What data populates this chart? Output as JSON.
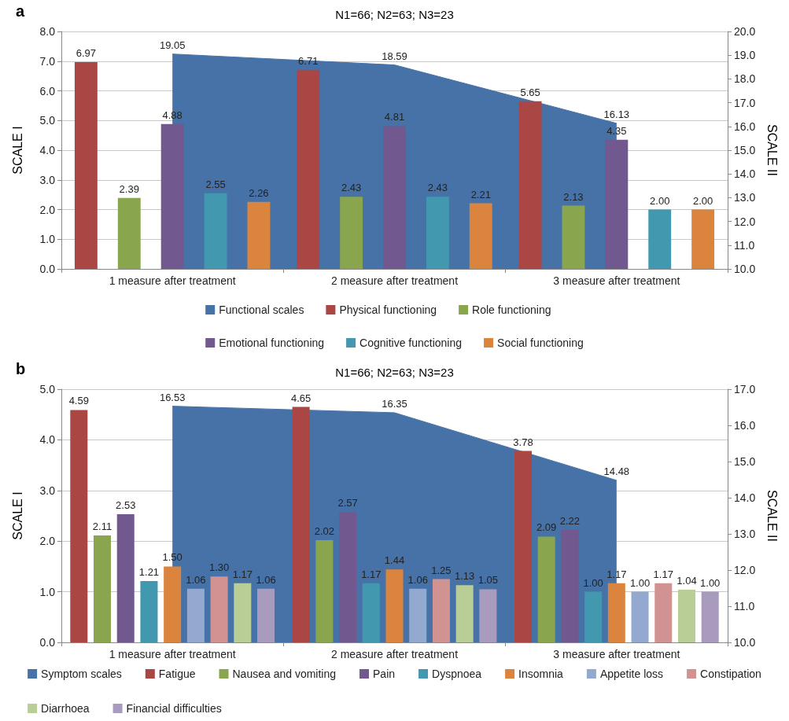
{
  "chart_data": [
    {
      "type": "bar",
      "title": "N1=66; N2=63; N3=23",
      "annotations": [
        "a"
      ],
      "ylabel": "SCALE I",
      "y2label": "SCALE II",
      "categories": [
        "1 measure after treatment",
        "2 measure after treatment",
        "3 measure after treatment"
      ],
      "series": [
        {
          "name": "Functional scales",
          "type": "area",
          "axis": "y2",
          "color": "#4672a8",
          "values": [
            19.05,
            18.59,
            16.13
          ],
          "value_labels": [
            "19.05",
            "18.59",
            "16.13"
          ]
        },
        {
          "name": "Physical functioning",
          "color": "#aa4643",
          "values": [
            6.97,
            6.71,
            5.65
          ],
          "value_labels": [
            "6.97",
            "6.71",
            "5.65"
          ]
        },
        {
          "name": "Role functioning",
          "color": "#89a54e",
          "values": [
            2.39,
            2.43,
            2.13
          ],
          "value_labels": [
            "2.39",
            "2.43",
            "2.13"
          ]
        },
        {
          "name": "Emotional functioning",
          "color": "#71588f",
          "values": [
            4.88,
            4.81,
            4.35
          ],
          "value_labels": [
            "4.88",
            "4.81",
            "4.35"
          ]
        },
        {
          "name": "Cognitive functioning",
          "color": "#4198af",
          "values": [
            2.55,
            2.43,
            2.0
          ],
          "value_labels": [
            "2.55",
            "2.43",
            "2.00"
          ]
        },
        {
          "name": "Social functioning",
          "color": "#db843d",
          "values": [
            2.26,
            2.21,
            2.0
          ],
          "value_labels": [
            "2.26",
            "2.21",
            "2.00"
          ]
        }
      ],
      "ylim": [
        0,
        8
      ],
      "yticks": [
        {
          "value": 0,
          "label": "0.0"
        },
        {
          "value": 1,
          "label": "1.0"
        },
        {
          "value": 2,
          "label": "2.0"
        },
        {
          "value": 3,
          "label": "3.0"
        },
        {
          "value": 4,
          "label": "4.0"
        },
        {
          "value": 5,
          "label": "5.0"
        },
        {
          "value": 6,
          "label": "6.0"
        },
        {
          "value": 7,
          "label": "7.0"
        },
        {
          "value": 8,
          "label": "8.0"
        }
      ],
      "y2lim": [
        10,
        20
      ],
      "y2ticks": [
        {
          "value": 10,
          "label": "10.0"
        },
        {
          "value": 11,
          "label": "11.0"
        },
        {
          "value": 12,
          "label": "12.0"
        },
        {
          "value": 13,
          "label": "13.0"
        },
        {
          "value": 14,
          "label": "14.0"
        },
        {
          "value": 15,
          "label": "15.0"
        },
        {
          "value": 16,
          "label": "16.0"
        },
        {
          "value": 17,
          "label": "17.0"
        },
        {
          "value": 18,
          "label": "18.0"
        },
        {
          "value": 19,
          "label": "19.0"
        },
        {
          "value": 20,
          "label": "20.0"
        }
      ],
      "grid": "y",
      "legend": "bottom"
    },
    {
      "type": "bar",
      "title": "N1=66; N2=63; N3=23",
      "annotations": [
        "b"
      ],
      "ylabel": "SCALE I",
      "y2label": "SCALE II",
      "categories": [
        "1 measure after treatment",
        "2 measure after treatment",
        "3 measure after treatment"
      ],
      "series": [
        {
          "name": "Symptom scales",
          "type": "area",
          "axis": "y2",
          "color": "#4672a8",
          "values": [
            16.53,
            16.35,
            14.48
          ],
          "value_labels": [
            "16.53",
            "16.35",
            "14.48"
          ]
        },
        {
          "name": "Fatigue",
          "color": "#aa4643",
          "values": [
            4.59,
            4.65,
            3.78
          ],
          "value_labels": [
            "4.59",
            "4.65",
            "3.78"
          ]
        },
        {
          "name": "Nausea and vomiting",
          "color": "#89a54e",
          "values": [
            2.11,
            2.02,
            2.09
          ],
          "value_labels": [
            "2.11",
            "2.02",
            "2.09"
          ]
        },
        {
          "name": "Pain",
          "color": "#71588f",
          "values": [
            2.53,
            2.57,
            2.22
          ],
          "value_labels": [
            "2.53",
            "2.57",
            "2.22"
          ]
        },
        {
          "name": "Dyspnoea",
          "color": "#4198af",
          "values": [
            1.21,
            1.17,
            1.0
          ],
          "value_labels": [
            "1.21",
            "1.17",
            "1.00"
          ]
        },
        {
          "name": "Insomnia",
          "color": "#db843d",
          "values": [
            1.5,
            1.44,
            1.17
          ],
          "value_labels": [
            "1.50",
            "1.44",
            "1.17"
          ]
        },
        {
          "name": "Appetite loss",
          "color": "#93a9cf",
          "values": [
            1.06,
            1.06,
            1.0
          ],
          "value_labels": [
            "1.06",
            "1.06",
            "1.00"
          ]
        },
        {
          "name": "Constipation",
          "color": "#d19392",
          "values": [
            1.3,
            1.25,
            1.17
          ],
          "value_labels": [
            "1.30",
            "1.25",
            "1.17"
          ]
        },
        {
          "name": "Diarrhoea",
          "color": "#b9cd96",
          "values": [
            1.17,
            1.13,
            1.04
          ],
          "value_labels": [
            "1.17",
            "1.13",
            "1.04"
          ]
        },
        {
          "name": "Financial difficulties",
          "color": "#a99bbd",
          "values": [
            1.06,
            1.05,
            1.0
          ],
          "value_labels": [
            "1.06",
            "1.05",
            "1.00"
          ]
        }
      ],
      "ylim": [
        0,
        5
      ],
      "yticks": [
        {
          "value": 0,
          "label": "0.0"
        },
        {
          "value": 1,
          "label": "1.0"
        },
        {
          "value": 2,
          "label": "2.0"
        },
        {
          "value": 3,
          "label": "3.0"
        },
        {
          "value": 4,
          "label": "4.0"
        },
        {
          "value": 5,
          "label": "5.0"
        }
      ],
      "y2lim": [
        10,
        17
      ],
      "y2ticks": [
        {
          "value": 10,
          "label": "10.0"
        },
        {
          "value": 11,
          "label": "11.0"
        },
        {
          "value": 12,
          "label": "12.0"
        },
        {
          "value": 13,
          "label": "13.0"
        },
        {
          "value": 14,
          "label": "14.0"
        },
        {
          "value": 15,
          "label": "15.0"
        },
        {
          "value": 16,
          "label": "16.0"
        },
        {
          "value": 17,
          "label": "17.0"
        }
      ],
      "grid": "y",
      "legend": "bottom"
    }
  ]
}
